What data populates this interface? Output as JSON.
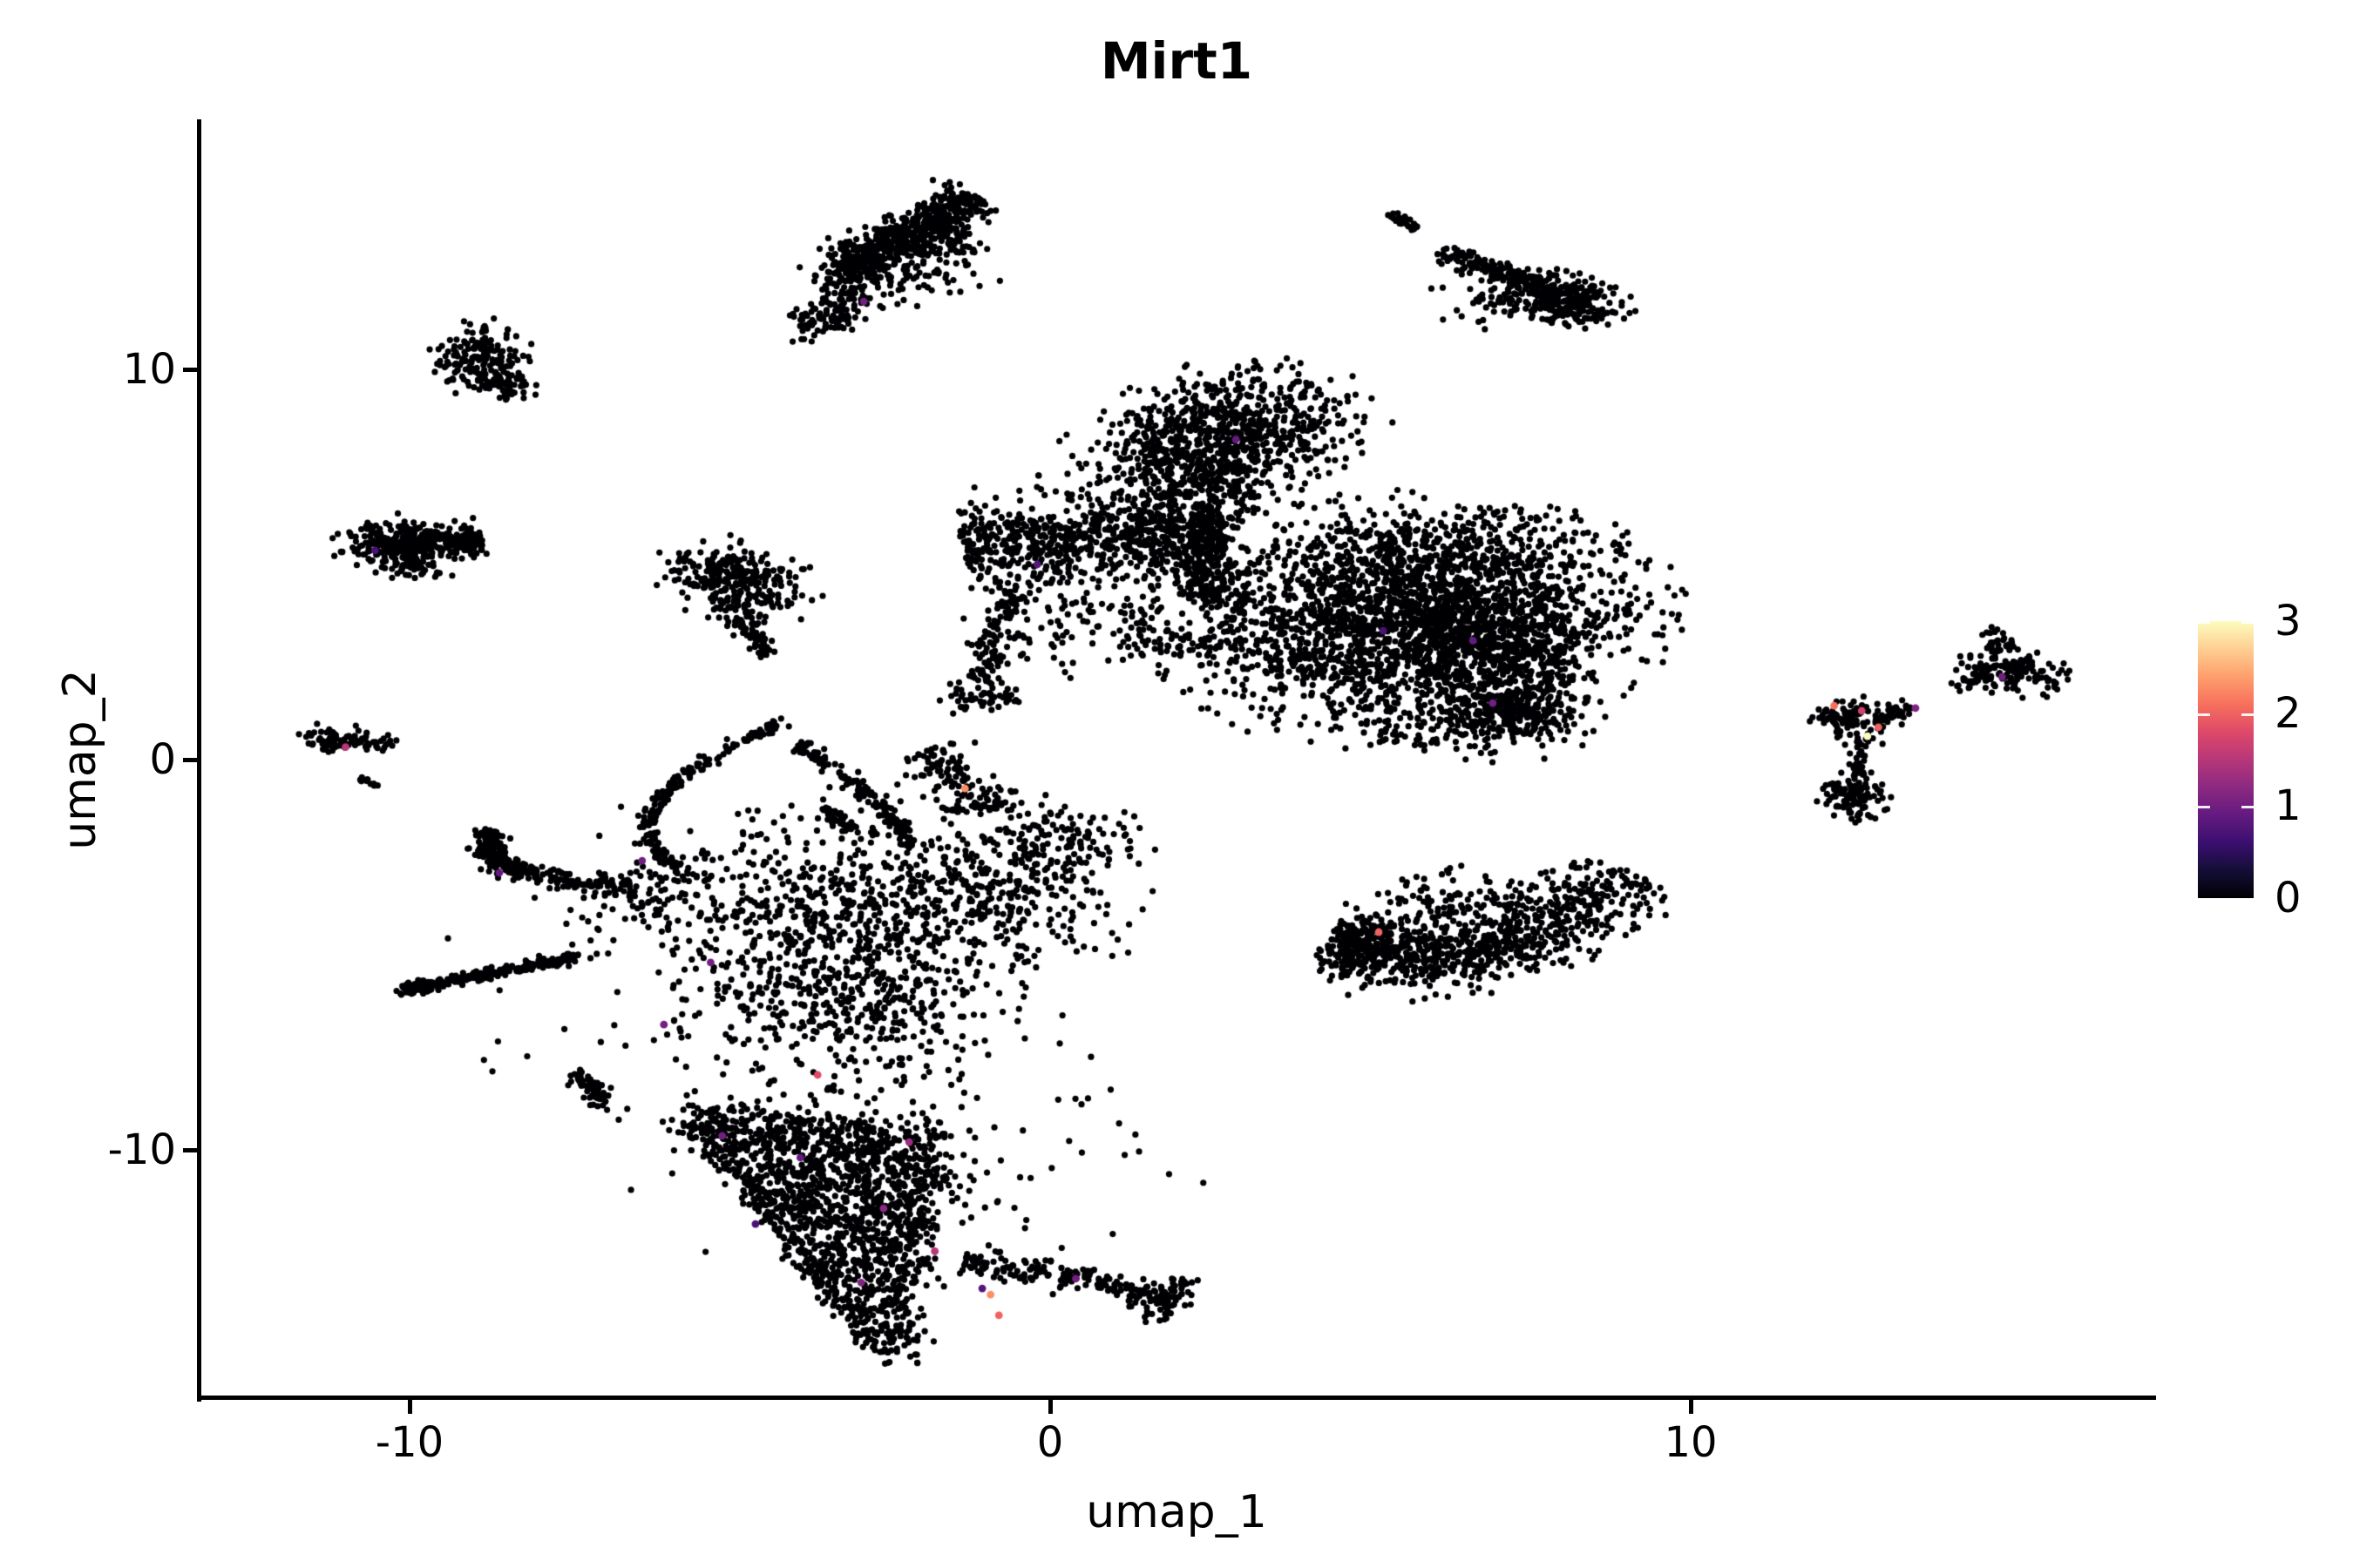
{
  "chart_data": {
    "type": "scatter",
    "title": "Mirt1",
    "xlabel": "umap_1",
    "ylabel": "umap_2",
    "xlim": [
      -13.3,
      17.2
    ],
    "ylim": [
      -16.4,
      16.4
    ],
    "x_ticks": [
      -10,
      0,
      10
    ],
    "x_tick_labels": [
      "-10",
      "0",
      "10"
    ],
    "y_ticks": [
      10,
      0,
      -10
    ],
    "y_tick_labels": [
      "10",
      "0",
      "-10"
    ],
    "grid": false,
    "background": "#ffffff",
    "axis_color": "#000000",
    "point_color_zero": "#000004",
    "point_radius_px": 3.6,
    "n_points_approx": 14300,
    "colorbar": {
      "vmin": 0,
      "vmax": 3,
      "tick_values": [
        3,
        2,
        1,
        0
      ],
      "tick_labels": [
        "3",
        "2",
        "1",
        "0"
      ],
      "colormap": "magma",
      "stops": [
        "#000004",
        "#140e36",
        "#3b0f70",
        "#641a80",
        "#8c2981",
        "#b73779",
        "#de4968",
        "#f7705c",
        "#fe9f6d",
        "#fecf92",
        "#fcfdbf"
      ]
    },
    "clusters": [
      {
        "name": "top-center-wing",
        "kind": "line",
        "n": 420,
        "x1": -3.3,
        "y1": 12.55,
        "x2": -1.15,
        "y2": 14.45,
        "sd": 0.24
      },
      {
        "name": "top-center-wing",
        "kind": "line",
        "n": 340,
        "x1": -3.5,
        "y1": 11.95,
        "x2": -1.5,
        "y2": 13.8,
        "sd": 0.38
      },
      {
        "name": "top-center-wing",
        "kind": "blob",
        "n": 90,
        "cx": -3.55,
        "cy": 11.3,
        "sx": 0.35,
        "sy": 0.22,
        "a": 40
      },
      {
        "name": "top-center-wing",
        "kind": "blob",
        "n": 55,
        "cx": -1.75,
        "cy": 12.8,
        "sx": 0.45,
        "sy": 0.6,
        "a": 0
      },
      {
        "name": "top-right-comet",
        "kind": "blob",
        "n": 290,
        "cx": 8.0,
        "cy": 11.8,
        "sx": 0.52,
        "sy": 0.3,
        "a": -25
      },
      {
        "name": "top-right-comet",
        "kind": "line",
        "n": 130,
        "x1": 6.1,
        "y1": 13.05,
        "x2": 7.65,
        "y2": 12.15,
        "sd": 0.1
      },
      {
        "name": "top-right-comet",
        "kind": "line",
        "n": 25,
        "x1": 5.3,
        "y1": 14.0,
        "x2": 5.8,
        "y2": 13.55,
        "sd": 0.06
      },
      {
        "name": "top-right-comet",
        "kind": "blob",
        "n": 60,
        "cx": 6.9,
        "cy": 11.9,
        "sx": 0.55,
        "sy": 0.5,
        "a": -10
      },
      {
        "name": "upper-left-round",
        "kind": "blob",
        "n": 170,
        "cx": -8.9,
        "cy": 10.35,
        "sx": 0.35,
        "sy": 0.42,
        "a": -10
      },
      {
        "name": "upper-left-round",
        "kind": "blob",
        "n": 60,
        "cx": -8.5,
        "cy": 9.55,
        "sx": 0.28,
        "sy": 0.18,
        "a": -30
      },
      {
        "name": "left-bar",
        "kind": "blob",
        "n": 150,
        "cx": -10.3,
        "cy": 5.5,
        "sx": 0.38,
        "sy": 0.33,
        "a": 0
      },
      {
        "name": "left-bar",
        "kind": "line",
        "n": 250,
        "x1": -10.3,
        "y1": 5.45,
        "x2": -8.85,
        "y2": 5.65,
        "sd": 0.2
      },
      {
        "name": "left-bar",
        "kind": "blob",
        "n": 30,
        "cx": -9.9,
        "cy": 4.85,
        "sx": 0.3,
        "sy": 0.14,
        "a": 0
      },
      {
        "name": "mid-left-island",
        "kind": "blob",
        "n": 240,
        "cx": -5.05,
        "cy": 4.65,
        "sx": 0.52,
        "sy": 0.42,
        "a": -35
      },
      {
        "name": "mid-left-island",
        "kind": "line",
        "n": 70,
        "x1": -4.95,
        "y1": 3.95,
        "x2": -4.45,
        "y2": 2.65,
        "sd": 0.13
      },
      {
        "name": "mid-left-island",
        "kind": "blob",
        "n": 45,
        "cx": -4.35,
        "cy": 4.5,
        "sx": 0.4,
        "sy": 0.5,
        "a": 0
      },
      {
        "name": "far-left-speck",
        "kind": "line",
        "n": 55,
        "x1": -11.55,
        "y1": 0.65,
        "x2": -10.15,
        "y2": 0.35,
        "sd": 0.12
      },
      {
        "name": "far-left-speck",
        "kind": "blob",
        "n": 35,
        "cx": -11.25,
        "cy": 0.5,
        "sx": 0.22,
        "sy": 0.14,
        "a": -10
      },
      {
        "name": "far-left-speck",
        "kind": "line",
        "n": 12,
        "x1": -10.75,
        "y1": -0.45,
        "x2": -10.5,
        "y2": -0.7,
        "sd": 0.05
      },
      {
        "name": "center-top-lobe",
        "kind": "blob",
        "n": 620,
        "cx": 3.0,
        "cy": 8.5,
        "sx": 0.95,
        "sy": 0.75,
        "a": 10
      },
      {
        "name": "center-top-lobe",
        "kind": "blob",
        "n": 180,
        "cx": 2.4,
        "cy": 7.0,
        "sx": 0.5,
        "sy": 0.6,
        "a": 0
      },
      {
        "name": "center-top-lobe",
        "kind": "blob",
        "n": 140,
        "cx": 1.7,
        "cy": 7.7,
        "sx": 0.45,
        "sy": 0.6,
        "a": 0
      },
      {
        "name": "center-top-lobe",
        "kind": "line",
        "n": 230,
        "x1": 2.3,
        "y1": 6.2,
        "x2": 2.6,
        "y2": 3.9,
        "sd": 0.3
      },
      {
        "name": "center-top-lobe",
        "kind": "blob",
        "n": 120,
        "cx": 1.5,
        "cy": 6.9,
        "sx": 1.0,
        "sy": 0.9,
        "a": 0
      },
      {
        "name": "center-band",
        "kind": "line",
        "n": 700,
        "x1": -1.4,
        "y1": 5.45,
        "x2": 2.7,
        "y2": 5.85,
        "sd": 0.5
      },
      {
        "name": "center-band",
        "kind": "line",
        "n": 110,
        "x1": -0.5,
        "y1": 4.5,
        "x2": -1.05,
        "y2": 2.0,
        "sd": 0.15
      },
      {
        "name": "center-band",
        "kind": "blob",
        "n": 55,
        "cx": -1.1,
        "cy": 1.55,
        "sx": 0.32,
        "sy": 0.2,
        "a": 0
      },
      {
        "name": "center-band",
        "kind": "blob",
        "n": 110,
        "cx": 0.3,
        "cy": 3.7,
        "sx": 0.8,
        "sy": 0.8,
        "a": 0
      },
      {
        "name": "center-band",
        "kind": "blob",
        "n": 70,
        "cx": 2.0,
        "cy": 3.0,
        "sx": 0.5,
        "sy": 0.25,
        "a": 0
      },
      {
        "name": "center-right-mass",
        "kind": "blob",
        "n": 2300,
        "cx": 5.6,
        "cy": 3.6,
        "sx": 1.75,
        "sy": 1.35,
        "a": 7
      },
      {
        "name": "center-right-mass",
        "kind": "blob",
        "n": 480,
        "cx": 7.15,
        "cy": 2.9,
        "sx": 0.75,
        "sy": 0.95,
        "a": 0
      },
      {
        "name": "center-right-mass",
        "kind": "blob",
        "n": 200,
        "cx": 6.3,
        "cy": 5.4,
        "sx": 1.1,
        "sy": 0.5,
        "a": 5
      },
      {
        "name": "center-right-mass",
        "kind": "blob",
        "n": 150,
        "cx": 6.8,
        "cy": 0.9,
        "sx": 0.9,
        "sy": 0.45,
        "a": 0
      },
      {
        "name": "center-right-mass",
        "kind": "blob",
        "n": 160,
        "cx": 7.35,
        "cy": 1.3,
        "sx": 0.45,
        "sy": 0.35,
        "a": 0
      },
      {
        "name": "banana",
        "kind": "bez",
        "n": 850,
        "p": [
          [
            4.55,
            -4.5
          ],
          [
            6.4,
            -6.3
          ],
          [
            9.1,
            -2.9
          ]
        ],
        "sd": 0.42
      },
      {
        "name": "banana",
        "kind": "blob",
        "n": 140,
        "cx": 6.6,
        "cy": -3.8,
        "sx": 0.9,
        "sy": 0.45,
        "a": 0
      },
      {
        "name": "banana",
        "kind": "blob",
        "n": 80,
        "cx": 4.75,
        "cy": -4.9,
        "sx": 0.25,
        "sy": 0.5,
        "a": 0
      },
      {
        "name": "far-right-y",
        "kind": "blob",
        "n": 70,
        "cx": 12.45,
        "cy": 1.15,
        "sx": 0.26,
        "sy": 0.18,
        "a": 20
      },
      {
        "name": "far-right-y",
        "kind": "line",
        "n": 45,
        "x1": 12.85,
        "y1": 1.0,
        "x2": 13.5,
        "y2": 1.35,
        "sd": 0.1
      },
      {
        "name": "far-right-y",
        "kind": "blob",
        "n": 30,
        "cx": 12.7,
        "cy": 0.55,
        "sx": 0.2,
        "sy": 0.2,
        "a": 0
      },
      {
        "name": "far-right-y",
        "kind": "line",
        "n": 22,
        "x1": 12.68,
        "y1": 0.25,
        "x2": 12.58,
        "y2": -0.45,
        "sd": 0.07
      },
      {
        "name": "far-right-y",
        "kind": "blob",
        "n": 105,
        "cx": 12.55,
        "cy": -1.0,
        "sx": 0.26,
        "sy": 0.34,
        "a": 0
      },
      {
        "name": "far-right-comet",
        "kind": "blob",
        "n": 135,
        "cx": 15.0,
        "cy": 2.25,
        "sx": 0.42,
        "sy": 0.26,
        "a": -18
      },
      {
        "name": "far-right-comet",
        "kind": "blob",
        "n": 28,
        "cx": 14.82,
        "cy": 3.0,
        "sx": 0.16,
        "sy": 0.2,
        "a": 0
      },
      {
        "name": "far-right-comet",
        "kind": "line",
        "n": 24,
        "x1": 14.1,
        "y1": 1.85,
        "x2": 14.65,
        "y2": 2.1,
        "sd": 0.08
      },
      {
        "name": "bottom-left-arc1",
        "kind": "bez",
        "n": 200,
        "p": [
          [
            -4.1,
            1.0
          ],
          [
            -7.7,
            -1.6
          ],
          [
            -5.35,
            -3.1
          ]
        ],
        "sd": 0.08
      },
      {
        "name": "bottom-left-arc2",
        "kind": "bez",
        "n": 150,
        "p": [
          [
            -3.95,
            0.4
          ],
          [
            -2.85,
            -0.6
          ],
          [
            -2.15,
            -2.2
          ]
        ],
        "sd": 0.08
      },
      {
        "name": "bottom-left-inner-dash",
        "kind": "line",
        "n": 45,
        "x1": -3.55,
        "y1": -1.25,
        "x2": -3.1,
        "y2": -1.8,
        "sd": 0.07
      },
      {
        "name": "bottom-left-band",
        "kind": "bez",
        "n": 290,
        "p": [
          [
            -8.75,
            -1.8
          ],
          [
            -9.2,
            -3.0
          ],
          [
            -6.45,
            -3.3
          ]
        ],
        "sd": 0.13
      },
      {
        "name": "bottom-left-streak",
        "kind": "line",
        "n": 230,
        "x1": -10.05,
        "y1": -5.9,
        "x2": -7.35,
        "y2": -5.05,
        "sd": 0.07
      },
      {
        "name": "bottom-left-streak",
        "kind": "blob",
        "n": 40,
        "cx": -9.95,
        "cy": -5.85,
        "sx": 0.14,
        "sy": 0.1,
        "a": 20
      },
      {
        "name": "bottom-left-mass",
        "kind": "blob",
        "n": 850,
        "cx": -3.35,
        "cy": -4.9,
        "sx": 1.25,
        "sy": 1.7,
        "a": 8
      },
      {
        "name": "bottom-left-mass",
        "kind": "line",
        "n": 70,
        "x1": -7.45,
        "y1": -8.0,
        "x2": -6.95,
        "y2": -8.85,
        "sd": 0.1
      },
      {
        "name": "bottom-left-mass",
        "kind": "blob",
        "n": 90,
        "cx": -6.3,
        "cy": -3.6,
        "sx": 0.7,
        "sy": 0.6,
        "a": 0
      },
      {
        "name": "bottom-left-mass",
        "kind": "line",
        "n": 130,
        "x1": -2.0,
        "y1": 0.2,
        "x2": -0.9,
        "y2": -1.3,
        "sd": 0.25
      },
      {
        "name": "bottom-left-mass",
        "kind": "blob",
        "n": 350,
        "cx": -0.7,
        "cy": -3.2,
        "sx": 0.9,
        "sy": 1.1,
        "a": 20
      },
      {
        "name": "bottom-left-mass",
        "kind": "blob",
        "n": 80,
        "cx": 0.3,
        "cy": -2.0,
        "sx": 0.55,
        "sy": 0.4,
        "a": -15
      },
      {
        "name": "bottom-blob",
        "kind": "tri",
        "n": 1500,
        "pa": [
          -5.8,
          -8.9
        ],
        "pb": [
          -1.6,
          -9.5
        ],
        "pc": [
          -2.3,
          -15.7
        ],
        "j": 0.18
      },
      {
        "name": "bottom-blob",
        "kind": "line",
        "n": 180,
        "x1": -5.6,
        "y1": -9.3,
        "x2": -2.55,
        "y2": -15.35,
        "sd": 0.12
      },
      {
        "name": "bottom-tail",
        "kind": "line",
        "n": 150,
        "x1": -1.35,
        "y1": -12.9,
        "x2": 1.5,
        "y2": -13.55,
        "sd": 0.16
      },
      {
        "name": "bottom-tail",
        "kind": "blob",
        "n": 85,
        "cx": 1.8,
        "cy": -13.75,
        "sx": 0.22,
        "sy": 0.3,
        "a": -30
      },
      {
        "name": "bottom-left-spray",
        "kind": "blob",
        "n": 200,
        "cx": -4.0,
        "cy": -6.8,
        "sx": 2.3,
        "sy": 2.7,
        "a": 0
      },
      {
        "name": "bottom-left-spray",
        "kind": "blob",
        "n": 55,
        "cx": -0.6,
        "cy": -10.6,
        "sx": 1.3,
        "sy": 1.4,
        "a": 0
      }
    ],
    "highlight_points": [
      {
        "x": -2.91,
        "y": 11.74,
        "value": 1.0
      },
      {
        "x": -10.54,
        "y": 5.36,
        "value": 0.7
      },
      {
        "x": -11.0,
        "y": 0.32,
        "value": 1.5
      },
      {
        "x": 6.91,
        "y": 1.45,
        "value": 1.0
      },
      {
        "x": 6.6,
        "y": 3.05,
        "value": 0.9
      },
      {
        "x": 5.13,
        "y": -4.42,
        "value": 2.0
      },
      {
        "x": 12.24,
        "y": 1.38,
        "value": 2.1
      },
      {
        "x": 12.67,
        "y": 1.25,
        "value": 1.7
      },
      {
        "x": 13.51,
        "y": 1.32,
        "value": 1.1
      },
      {
        "x": 12.93,
        "y": 0.83,
        "value": 2.0
      },
      {
        "x": 12.76,
        "y": 0.6,
        "value": 3.0
      },
      {
        "x": 14.86,
        "y": 2.12,
        "value": 1.0
      },
      {
        "x": -1.33,
        "y": -0.74,
        "value": 2.3
      },
      {
        "x": -3.63,
        "y": -8.08,
        "value": 1.8
      },
      {
        "x": -5.12,
        "y": -9.64,
        "value": 1.0
      },
      {
        "x": -0.93,
        "y": -13.71,
        "value": 2.3
      },
      {
        "x": -0.8,
        "y": -14.24,
        "value": 2.0
      },
      {
        "x": -1.06,
        "y": -13.55,
        "value": 0.8
      },
      {
        "x": -6.37,
        "y": -2.59,
        "value": 1.0
      },
      {
        "x": -6.03,
        "y": -6.79,
        "value": 1.0
      },
      {
        "x": -2.6,
        "y": -11.5,
        "value": 1.2
      },
      {
        "x": -3.9,
        "y": -10.2,
        "value": 0.9
      },
      {
        "x": -1.8,
        "y": -12.6,
        "value": 1.5
      },
      {
        "x": -4.6,
        "y": -11.9,
        "value": 0.7
      },
      {
        "x": 0.4,
        "y": -13.3,
        "value": 1.0
      },
      {
        "x": -2.95,
        "y": -13.4,
        "value": 1.1
      },
      {
        "x": 2.9,
        "y": 8.2,
        "value": 0.9
      },
      {
        "x": 5.2,
        "y": 3.3,
        "value": 0.7
      },
      {
        "x": -0.2,
        "y": 5.0,
        "value": 0.8
      },
      {
        "x": -5.3,
        "y": -5.2,
        "value": 1.0
      },
      {
        "x": -8.6,
        "y": -2.9,
        "value": 0.9
      },
      {
        "x": -2.2,
        "y": -9.8,
        "value": 1.3
      }
    ]
  }
}
